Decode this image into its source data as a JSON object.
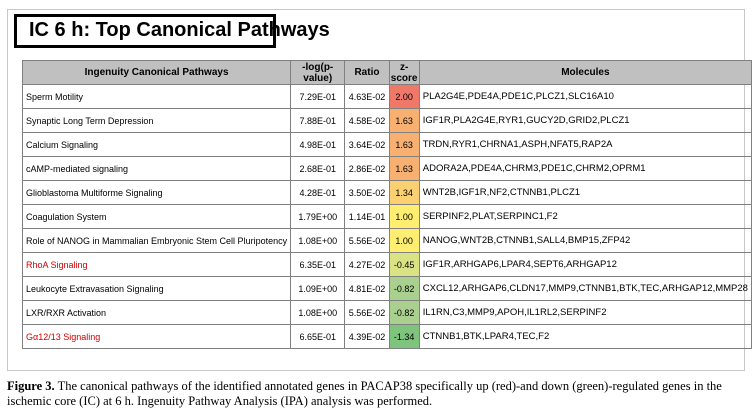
{
  "title": "IC 6 h: Top Canonical Pathways",
  "headers": [
    "Ingenuity Canonical Pathways",
    "-log(p-value)",
    "Ratio",
    "z-score",
    "Molecules"
  ],
  "rows": [
    {
      "pathway": "Sperm Motility",
      "logp": "7.29E-01",
      "ratio": "4.63E-02",
      "z": "2.00",
      "z_color": "#f07868",
      "molecules": "PLA2G4E,PDE4A,PDE1C,PLCZ1,SLC16A10",
      "highlight": false
    },
    {
      "pathway": "Synaptic Long Term Depression",
      "logp": "7.88E-01",
      "ratio": "4.58E-02",
      "z": "1.63",
      "z_color": "#f8b070",
      "molecules": "IGF1R,PLA2G4E,RYR1,GUCY2D,GRID2,PLCZ1",
      "highlight": false
    },
    {
      "pathway": "Calcium Signaling",
      "logp": "4.98E-01",
      "ratio": "3.64E-02",
      "z": "1.63",
      "z_color": "#f8b070",
      "molecules": "TRDN,RYR1,CHRNA1,ASPH,NFAT5,RAP2A",
      "highlight": false
    },
    {
      "pathway": "cAMP-mediated signaling",
      "logp": "2.68E-01",
      "ratio": "2.86E-02",
      "z": "1.63",
      "z_color": "#f8b070",
      "molecules": "ADORA2A,PDE4A,CHRM3,PDE1C,CHRM2,OPRM1",
      "highlight": false
    },
    {
      "pathway": "Glioblastoma Multiforme Signaling",
      "logp": "4.28E-01",
      "ratio": "3.50E-02",
      "z": "1.34",
      "z_color": "#fbd070",
      "molecules": "WNT2B,IGF1R,NF2,CTNNB1,PLCZ1",
      "highlight": false
    },
    {
      "pathway": "Coagulation System",
      "logp": "1.79E+00",
      "ratio": "1.14E-01",
      "z": "1.00",
      "z_color": "#ffee70",
      "molecules": "SERPINF2,PLAT,SERPINC1,F2",
      "highlight": false
    },
    {
      "pathway": "Role of NANOG in Mammalian Embryonic Stem Cell Pluripotency",
      "logp": "1.08E+00",
      "ratio": "5.56E-02",
      "z": "1.00",
      "z_color": "#ffee70",
      "molecules": "NANOG,WNT2B,CTNNB1,SALL4,BMP15,ZFP42",
      "highlight": false
    },
    {
      "pathway": "RhoA Signaling",
      "logp": "6.35E-01",
      "ratio": "4.27E-02",
      "z": "-0.45",
      "z_color": "#d9e383",
      "molecules": "IGF1R,ARHGAP6,LPAR4,SEPT6,ARHGAP12",
      "highlight": true
    },
    {
      "pathway": "Leukocyte Extravasation Signaling",
      "logp": "1.09E+00",
      "ratio": "4.81E-02",
      "z": "-0.82",
      "z_color": "#a9d08e",
      "molecules": "CXCL12,ARHGAP6,CLDN17,MMP9,CTNNB1,BTK,TEC,ARHGAP12,MMP28",
      "highlight": false
    },
    {
      "pathway": "LXR/RXR Activation",
      "logp": "1.08E+00",
      "ratio": "5.56E-02",
      "z": "-0.82",
      "z_color": "#a9d08e",
      "molecules": "IL1RN,C3,MMP9,APOH,IL1RL2,SERPINF2",
      "highlight": false
    },
    {
      "pathway": "Gα12/13 Signaling",
      "logp": "6.65E-01",
      "ratio": "4.39E-02",
      "z": "-1.34",
      "z_color": "#7ec47c",
      "molecules": "CTNNB1,BTK,LPAR4,TEC,F2",
      "highlight": true
    }
  ],
  "caption": {
    "label": "Figure 3.",
    "text": " The canonical pathways of the identified annotated genes in PACAP38 specifically up (red)-and down (green)-regulated genes in the ischemic core (IC) at 6 h. Ingenuity Pathway Analysis (IPA) analysis was performed."
  }
}
